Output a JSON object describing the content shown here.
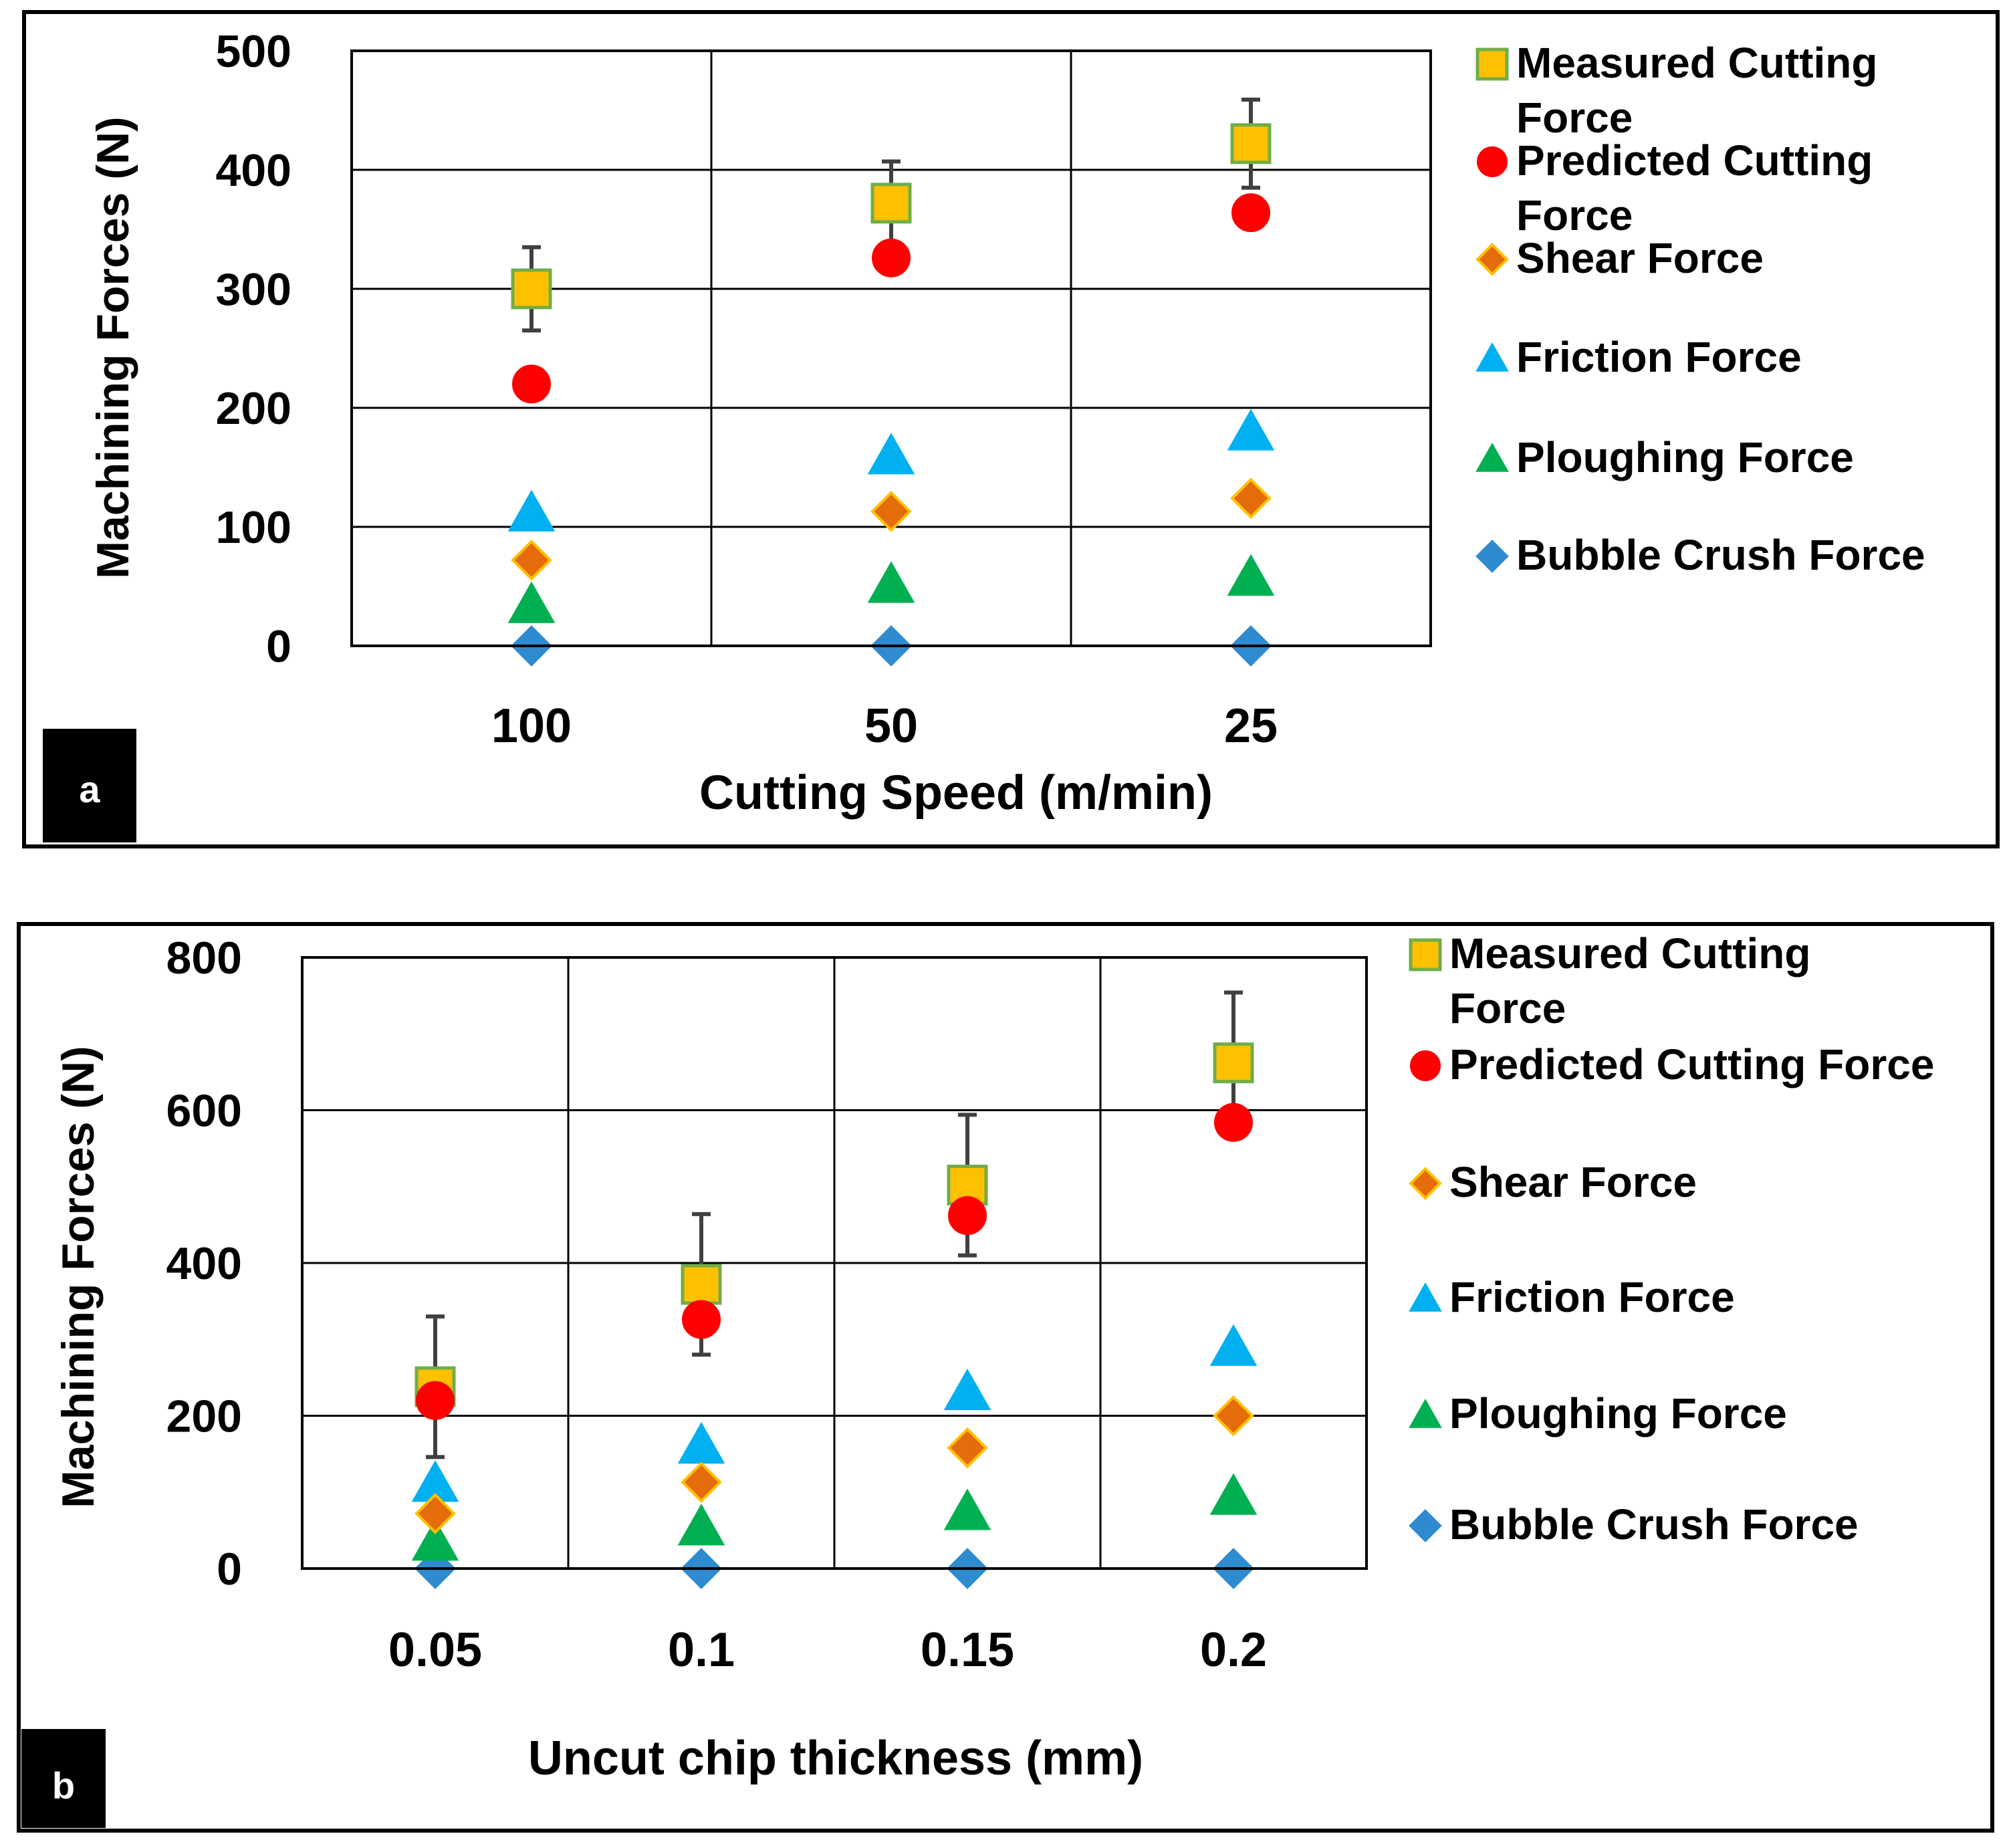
{
  "chart_data": [
    {
      "type": "scatter",
      "panel_label": "a",
      "xlabel": "Cutting Speed (m/min)",
      "ylabel": "Machining Forces (N)",
      "categories": [
        "100",
        "50",
        "25"
      ],
      "ylim": [
        0,
        500
      ],
      "yticks": [
        "0",
        "100",
        "200",
        "300",
        "400",
        "500"
      ],
      "grid": true,
      "legend_position": "right",
      "series": [
        {
          "name": "Measured Cutting Force",
          "legend_lines": [
            "Measured Cutting",
            "Force"
          ],
          "marker": "square",
          "fill": "#FFC000",
          "stroke": "#70AD47",
          "values": [
            300,
            372,
            422
          ],
          "error": [
            35,
            35,
            37
          ]
        },
        {
          "name": "Predicted Cutting Force",
          "legend_lines": [
            "Predicted Cutting",
            "Force"
          ],
          "marker": "circle",
          "fill": "#FF0000",
          "stroke": "#FF0000",
          "values": [
            220,
            326,
            364
          ]
        },
        {
          "name": "Shear Force",
          "legend_lines": [
            "Shear Force"
          ],
          "marker": "diamond",
          "fill": "#E46C0A",
          "stroke": "#FFC000",
          "values": [
            72,
            113,
            124
          ]
        },
        {
          "name": "Friction Force",
          "legend_lines": [
            "Friction Force"
          ],
          "marker": "triangle",
          "fill": "#00B0F0",
          "stroke": "#00B0F0",
          "values": [
            112,
            160,
            180
          ]
        },
        {
          "name": "Ploughing Force",
          "legend_lines": [
            "Ploughing Force"
          ],
          "marker": "triangle",
          "fill": "#00B050",
          "stroke": "#00B050",
          "values": [
            35,
            52,
            58
          ]
        },
        {
          "name": "Bubble Crush Force",
          "legend_lines": [
            "Bubble Crush Force"
          ],
          "marker": "diamond",
          "fill": "#2E8BD0",
          "stroke": "#2E8BD0",
          "values": [
            0,
            0,
            0
          ]
        }
      ]
    },
    {
      "type": "scatter",
      "panel_label": "b",
      "xlabel": "Uncut chip thickness (mm)",
      "ylabel": "Machining Forces (N)",
      "categories": [
        "0.05",
        "0.1",
        "0.15",
        "0.2"
      ],
      "ylim": [
        0,
        800
      ],
      "yticks": [
        "0",
        "200",
        "400",
        "600",
        "800"
      ],
      "grid": true,
      "legend_position": "right",
      "series": [
        {
          "name": "Measured Cutting Force",
          "legend_lines": [
            "Measured Cutting",
            "Force"
          ],
          "marker": "square",
          "fill": "#FFC000",
          "stroke": "#70AD47",
          "values": [
            238,
            372,
            502,
            662
          ],
          "error": [
            92,
            92,
            92,
            92
          ]
        },
        {
          "name": "Predicted Cutting Force",
          "legend_lines": [
            "Predicted Cutting Force"
          ],
          "marker": "circle",
          "fill": "#FF0000",
          "stroke": "#FF0000",
          "values": [
            220,
            326,
            462,
            584
          ]
        },
        {
          "name": "Shear Force",
          "legend_lines": [
            "Shear Force"
          ],
          "marker": "diamond",
          "fill": "#E46C0A",
          "stroke": "#FFC000",
          "values": [
            72,
            113,
            158,
            200
          ]
        },
        {
          "name": "Friction Force",
          "legend_lines": [
            "Friction Force"
          ],
          "marker": "triangle",
          "fill": "#00B0F0",
          "stroke": "#00B0F0",
          "values": [
            112,
            162,
            232,
            290
          ]
        },
        {
          "name": "Ploughing Force",
          "legend_lines": [
            "Ploughing Force"
          ],
          "marker": "triangle",
          "fill": "#00B050",
          "stroke": "#00B050",
          "values": [
            35,
            55,
            75,
            95
          ]
        },
        {
          "name": "Bubble Crush Force",
          "legend_lines": [
            "Bubble Crush Force"
          ],
          "marker": "diamond",
          "fill": "#2E8BD0",
          "stroke": "#2E8BD0",
          "values": [
            0,
            0,
            0,
            0
          ]
        }
      ]
    }
  ]
}
